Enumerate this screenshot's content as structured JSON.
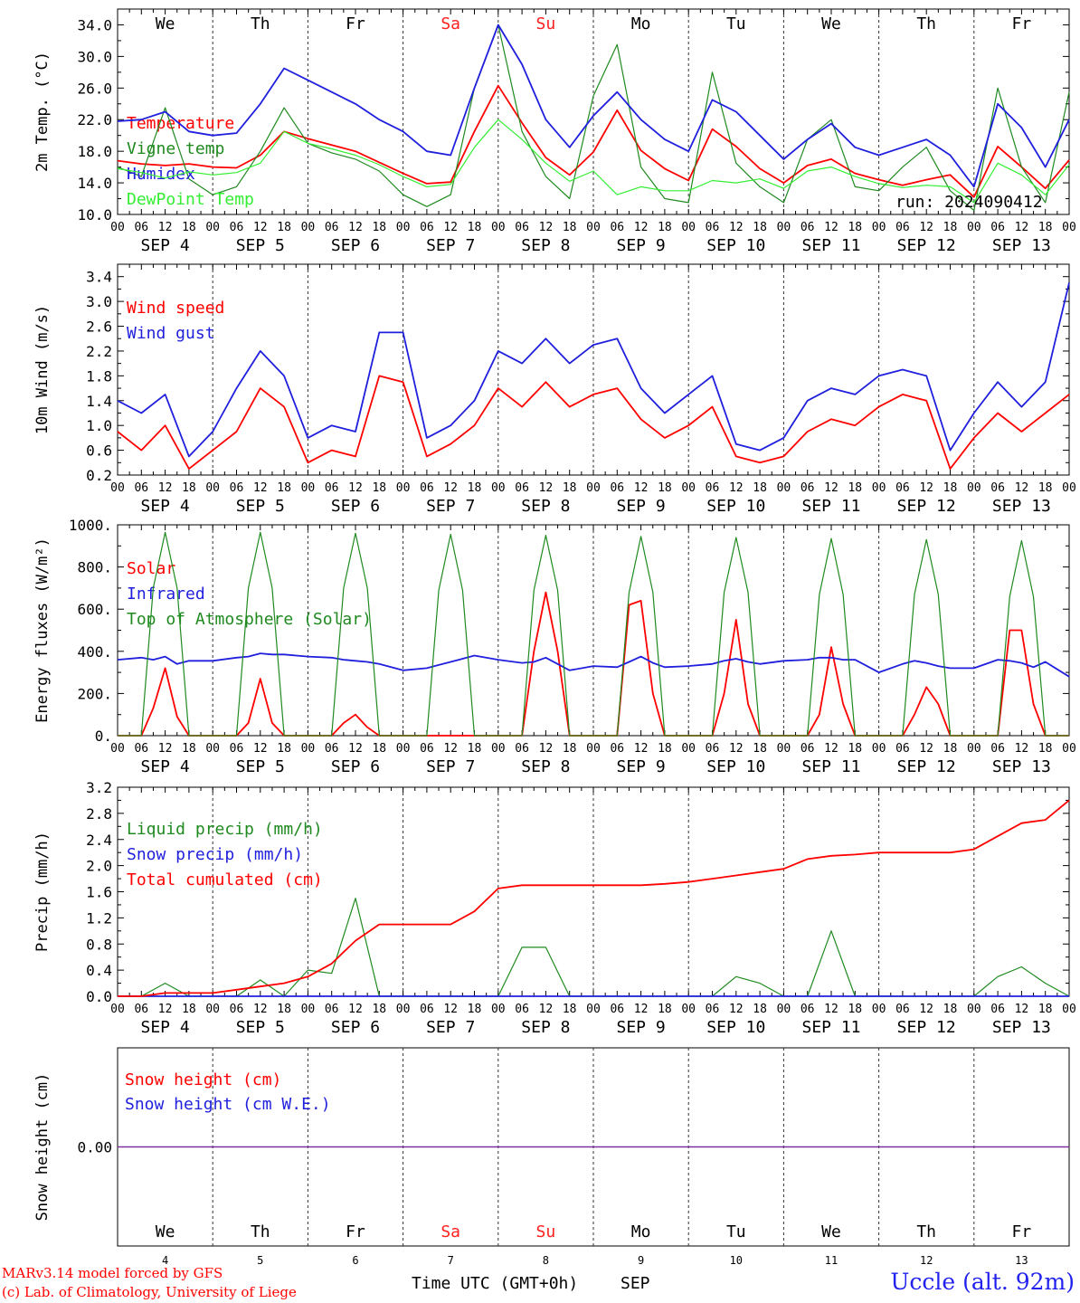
{
  "station": "Uccle (alt. 92m)",
  "credits": [
    "MARv3.14 model forced by GFS",
    "(c) Lab. of Climatology, University of Liege"
  ],
  "run_label": "run: 2024090412",
  "colors": {
    "red": "#ff0000",
    "green": "#1f8a1f",
    "blue": "#1f1fdd",
    "lightgreen": "#33ee33",
    "purple": "#7a2a9a",
    "weekend": "#ff2020",
    "weekday": "#000000"
  },
  "days": {
    "weekday_labels": [
      "We",
      "Th",
      "Fr",
      "Sa",
      "Su",
      "Mo",
      "Tu",
      "We",
      "Th",
      "Fr"
    ],
    "weekend_flags": [
      false,
      false,
      false,
      true,
      true,
      false,
      false,
      false,
      false,
      false
    ],
    "date_labels": [
      "SEP 4",
      "SEP 5",
      "SEP 6",
      "SEP 7",
      "SEP 8",
      "SEP 9",
      "SEP 10",
      "SEP 11",
      "SEP 12",
      "SEP 13"
    ],
    "day_numbers": [
      "4",
      "5",
      "6",
      "7",
      "8",
      "9",
      "10",
      "11",
      "12",
      "13"
    ],
    "hour_ticks": [
      "00",
      "06",
      "12",
      "18"
    ],
    "final_tick": "00"
  },
  "x_axis_title": "Time UTC (GMT+0h)",
  "x_axis_month": "SEP",
  "chart_data": [
    {
      "type": "line",
      "panel": "temperature",
      "ylabel": "2m Temp. (°C)",
      "ylim": [
        10,
        36
      ],
      "yticks": [
        "10.0",
        "14.0",
        "18.0",
        "22.0",
        "26.0",
        "30.0",
        "34.0"
      ],
      "x_unit": "hours since SEP 4 00 UTC",
      "x": [
        0,
        6,
        12,
        18,
        24,
        30,
        36,
        42,
        48,
        54,
        60,
        66,
        72,
        78,
        84,
        90,
        96,
        102,
        108,
        114,
        120,
        126,
        132,
        138,
        144,
        150,
        156,
        162,
        168,
        174,
        180,
        186,
        192,
        198,
        204,
        210,
        216,
        222,
        228,
        234,
        240
      ],
      "series": [
        {
          "name": "Temperature",
          "color": "red",
          "values": [
            16.8,
            16.4,
            16.2,
            16.4,
            16.0,
            15.9,
            17.5,
            20.5,
            19.6,
            18.8,
            18.0,
            16.6,
            15.2,
            13.9,
            14.1,
            20.5,
            26.3,
            21.6,
            17.2,
            15.0,
            17.9,
            23.2,
            18.1,
            15.8,
            14.3,
            20.8,
            18.6,
            15.8,
            14.0,
            16.2,
            17.0,
            15.2,
            14.4,
            13.7,
            14.4,
            15.0,
            12.2,
            18.6,
            16.0,
            13.3,
            16.9
          ]
        },
        {
          "name": "Vigne temp",
          "color": "green",
          "values": [
            16.0,
            14.8,
            23.5,
            14.5,
            12.5,
            13.5,
            18.0,
            23.5,
            19.0,
            17.8,
            17.0,
            15.5,
            12.5,
            11.0,
            12.5,
            26.0,
            34.0,
            20.5,
            14.8,
            12.0,
            25.0,
            31.5,
            16.0,
            12.0,
            11.5,
            28.0,
            16.5,
            13.5,
            11.5,
            19.5,
            22.0,
            13.5,
            13.0,
            16.0,
            18.5,
            13.0,
            10.5,
            26.0,
            16.0,
            11.5,
            25.5
          ]
        },
        {
          "name": "Humidex",
          "color": "blue",
          "values": [
            21.8,
            22.0,
            23.0,
            20.5,
            20.0,
            20.3,
            24.0,
            28.5,
            27.0,
            25.5,
            24.0,
            22.0,
            20.5,
            18.0,
            17.5,
            26.0,
            34.0,
            29.0,
            22.0,
            18.5,
            22.5,
            25.5,
            22.0,
            19.5,
            18.0,
            24.5,
            23.0,
            20.0,
            17.0,
            19.5,
            21.5,
            18.5,
            17.5,
            18.5,
            19.5,
            17.5,
            13.5,
            24.0,
            21.0,
            16.0,
            22.0
          ]
        },
        {
          "name": "DewPoint Temp",
          "color": "lightgreen",
          "values": [
            15.8,
            15.3,
            14.6,
            15.4,
            15.0,
            15.3,
            16.5,
            20.5,
            19.0,
            18.3,
            17.5,
            16.3,
            14.8,
            13.5,
            13.8,
            18.5,
            22.0,
            19.5,
            16.5,
            14.2,
            15.5,
            12.5,
            13.5,
            13.0,
            13.0,
            14.3,
            14.0,
            14.5,
            13.3,
            15.5,
            16.0,
            14.8,
            13.9,
            13.4,
            13.7,
            13.5,
            11.5,
            16.5,
            15.0,
            12.5,
            16.3
          ]
        }
      ]
    },
    {
      "type": "line",
      "panel": "wind",
      "ylabel": "10m Wind (m/s)",
      "ylim": [
        0.2,
        3.6
      ],
      "yticks": [
        "0.2",
        "0.6",
        "1.0",
        "1.4",
        "1.8",
        "2.2",
        "2.6",
        "3.0",
        "3.4"
      ],
      "x_unit": "hours since SEP 4 00 UTC",
      "x": [
        0,
        6,
        12,
        18,
        24,
        30,
        36,
        42,
        48,
        54,
        60,
        66,
        72,
        78,
        84,
        90,
        96,
        102,
        108,
        114,
        120,
        126,
        132,
        138,
        144,
        150,
        156,
        162,
        168,
        174,
        180,
        186,
        192,
        198,
        204,
        210,
        216,
        222,
        228,
        234,
        240
      ],
      "series": [
        {
          "name": "Wind speed",
          "color": "red",
          "values": [
            0.9,
            0.6,
            1.0,
            0.3,
            0.6,
            0.9,
            1.6,
            1.3,
            0.4,
            0.6,
            0.5,
            1.8,
            1.7,
            0.5,
            0.7,
            1.0,
            1.6,
            1.3,
            1.7,
            1.3,
            1.5,
            1.6,
            1.1,
            0.8,
            1.0,
            1.3,
            0.5,
            0.4,
            0.5,
            0.9,
            1.1,
            1.0,
            1.3,
            1.5,
            1.4,
            0.3,
            0.8,
            1.2,
            0.9,
            1.2,
            1.5
          ]
        },
        {
          "name": "Wind gust",
          "color": "blue",
          "values": [
            1.4,
            1.2,
            1.5,
            0.5,
            0.9,
            1.6,
            2.2,
            1.8,
            0.8,
            1.0,
            0.9,
            2.5,
            2.5,
            0.8,
            1.0,
            1.4,
            2.2,
            2.0,
            2.4,
            2.0,
            2.3,
            2.4,
            1.6,
            1.2,
            1.5,
            1.8,
            0.7,
            0.6,
            0.8,
            1.4,
            1.6,
            1.5,
            1.8,
            1.9,
            1.8,
            0.6,
            1.2,
            1.7,
            1.3,
            1.7,
            3.3
          ]
        }
      ]
    },
    {
      "type": "line",
      "panel": "energy",
      "ylabel": "Energy fluxes (W/m²)",
      "ylim": [
        0,
        1000
      ],
      "yticks": [
        "0.",
        "200.",
        "400.",
        "600.",
        "800.",
        "1000."
      ],
      "x_unit": "hours since SEP 4 00 UTC",
      "x": [
        0,
        6,
        9,
        12,
        15,
        18,
        24,
        30,
        33,
        36,
        39,
        42,
        48,
        54,
        57,
        60,
        63,
        66,
        72,
        78,
        81,
        84,
        87,
        90,
        96,
        102,
        105,
        108,
        111,
        114,
        120,
        126,
        129,
        132,
        135,
        138,
        144,
        150,
        153,
        156,
        159,
        162,
        168,
        174,
        177,
        180,
        183,
        186,
        192,
        198,
        201,
        204,
        207,
        210,
        216,
        222,
        225,
        228,
        231,
        234,
        240
      ],
      "series": [
        {
          "name": "Solar",
          "color": "red",
          "values": [
            0,
            0,
            130,
            320,
            90,
            0,
            0,
            0,
            60,
            270,
            60,
            0,
            0,
            0,
            60,
            100,
            40,
            0,
            0,
            0,
            0,
            0,
            0,
            0,
            0,
            0,
            400,
            680,
            400,
            0,
            0,
            0,
            620,
            640,
            200,
            0,
            0,
            0,
            200,
            550,
            150,
            0,
            0,
            0,
            100,
            420,
            150,
            0,
            0,
            0,
            100,
            230,
            150,
            0,
            0,
            0,
            500,
            500,
            150,
            0,
            0
          ]
        },
        {
          "name": "Infrared",
          "color": "blue",
          "values": [
            360,
            370,
            360,
            375,
            340,
            355,
            355,
            370,
            375,
            390,
            385,
            385,
            375,
            370,
            360,
            355,
            350,
            340,
            310,
            320,
            335,
            350,
            365,
            380,
            360,
            345,
            350,
            370,
            340,
            310,
            330,
            325,
            350,
            375,
            345,
            325,
            330,
            340,
            355,
            365,
            350,
            340,
            355,
            360,
            370,
            370,
            360,
            360,
            300,
            340,
            355,
            345,
            330,
            320,
            320,
            360,
            355,
            345,
            325,
            350,
            280
          ]
        },
        {
          "name": "Top of Atmosphere (Solar)",
          "color": "green",
          "values": [
            0,
            0,
            700,
            965,
            700,
            0,
            0,
            0,
            700,
            965,
            700,
            0,
            0,
            0,
            700,
            960,
            700,
            0,
            0,
            0,
            690,
            955,
            690,
            0,
            0,
            0,
            690,
            950,
            690,
            0,
            0,
            0,
            680,
            945,
            680,
            0,
            0,
            0,
            680,
            940,
            680,
            0,
            0,
            0,
            670,
            935,
            670,
            0,
            0,
            0,
            670,
            930,
            670,
            0,
            0,
            0,
            660,
            925,
            660,
            0,
            0
          ]
        }
      ]
    },
    {
      "type": "line",
      "panel": "precip",
      "ylabel": "Precip (mm/h)",
      "ylim": [
        0,
        3.2
      ],
      "yticks": [
        "0.0",
        "0.4",
        "0.8",
        "1.2",
        "1.6",
        "2.0",
        "2.4",
        "2.8",
        "3.2"
      ],
      "x_unit": "hours since SEP 4 00 UTC",
      "x": [
        0,
        6,
        12,
        18,
        24,
        30,
        36,
        42,
        48,
        54,
        60,
        66,
        72,
        78,
        84,
        90,
        96,
        102,
        108,
        114,
        120,
        126,
        132,
        138,
        144,
        150,
        156,
        162,
        168,
        174,
        180,
        186,
        192,
        198,
        204,
        210,
        216,
        222,
        228,
        234,
        240
      ],
      "series": [
        {
          "name": "Liquid precip (mm/h)",
          "color": "green",
          "values": [
            0,
            0,
            0.2,
            0,
            0,
            0,
            0.25,
            0,
            0.4,
            0.35,
            1.5,
            0,
            0,
            0,
            0,
            0,
            0,
            0.75,
            0.75,
            0,
            0,
            0,
            0,
            0,
            0,
            0,
            0.3,
            0.2,
            0,
            0,
            1.0,
            0,
            0,
            0,
            0,
            0,
            0,
            0.3,
            0.45,
            0.2,
            0
          ]
        },
        {
          "name": "Snow precip (mm/h)",
          "color": "blue",
          "values": [
            0,
            0,
            0,
            0,
            0,
            0,
            0,
            0,
            0,
            0,
            0,
            0,
            0,
            0,
            0,
            0,
            0,
            0,
            0,
            0,
            0,
            0,
            0,
            0,
            0,
            0,
            0,
            0,
            0,
            0,
            0,
            0,
            0,
            0,
            0,
            0,
            0,
            0,
            0,
            0,
            0
          ]
        },
        {
          "name": "Total cumulated (cm)",
          "color": "red",
          "values": [
            0,
            0,
            0.05,
            0.05,
            0.05,
            0.1,
            0.15,
            0.2,
            0.3,
            0.5,
            0.85,
            1.1,
            1.1,
            1.1,
            1.1,
            1.3,
            1.65,
            1.7,
            1.7,
            1.7,
            1.7,
            1.7,
            1.7,
            1.72,
            1.75,
            1.8,
            1.85,
            1.9,
            1.95,
            2.1,
            2.15,
            2.17,
            2.2,
            2.2,
            2.2,
            2.2,
            2.25,
            2.45,
            2.65,
            2.7,
            3.0
          ]
        }
      ]
    },
    {
      "type": "line",
      "panel": "snow",
      "ylabel": "Snow height (cm)",
      "yticks": [
        "0.00"
      ],
      "x_unit": "hours since SEP 4 00 UTC",
      "x": [
        0,
        240
      ],
      "series": [
        {
          "name": "Snow height (cm)",
          "color": "red",
          "values": [
            0,
            0
          ]
        },
        {
          "name": "Snow height (cm W.E.)",
          "color": "blue",
          "values": [
            0,
            0
          ]
        }
      ]
    }
  ]
}
